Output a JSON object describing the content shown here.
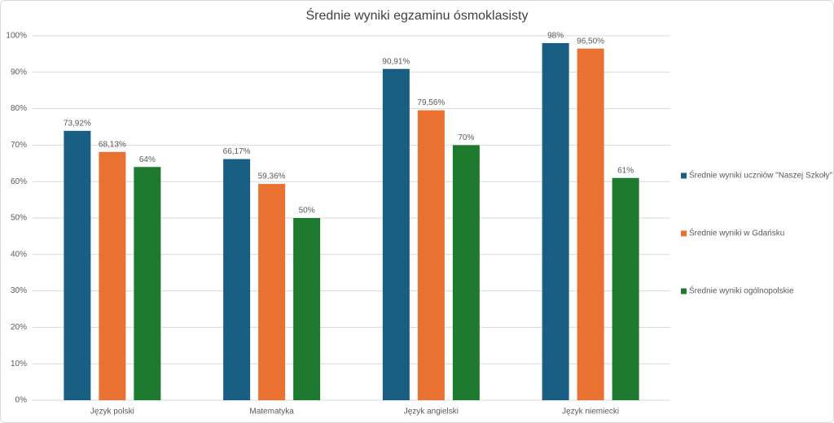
{
  "chart_data": {
    "type": "bar",
    "title": "Średnie wyniki egzaminu ósmoklasisty",
    "categories": [
      "Język polski",
      "Matematyka",
      "Język angielski",
      "Język niemiecki"
    ],
    "series": [
      {
        "name": "Średnie wyniki uczniów \"Naszej Szkoły\"",
        "color": "#195e83",
        "values": [
          73.92,
          66.17,
          90.91,
          98
        ],
        "value_labels": [
          "73,92%",
          "66,17%",
          "90,91%",
          "98%"
        ]
      },
      {
        "name": "Średnie wyniki w Gdańsku",
        "color": "#e97132",
        "values": [
          68.13,
          59.36,
          79.56,
          96.5
        ],
        "value_labels": [
          "68,13%",
          "59,36%",
          "79,56%",
          "96,50%"
        ]
      },
      {
        "name": "Średnie wyniki ogólnopolskie",
        "color": "#1e7a2e",
        "values": [
          64,
          50,
          70,
          61
        ],
        "value_labels": [
          "64%",
          "50%",
          "70%",
          "61%"
        ]
      }
    ],
    "ylim": [
      0,
      100
    ],
    "yticks": [
      {
        "value": 0,
        "label": "0%"
      },
      {
        "value": 10,
        "label": "10%"
      },
      {
        "value": 20,
        "label": "20%"
      },
      {
        "value": 30,
        "label": "30%"
      },
      {
        "value": 40,
        "label": "40%"
      },
      {
        "value": 50,
        "label": "50%"
      },
      {
        "value": 60,
        "label": "60%"
      },
      {
        "value": 70,
        "label": "70%"
      },
      {
        "value": 80,
        "label": "80%"
      },
      {
        "value": 90,
        "label": "90%"
      },
      {
        "value": 100,
        "label": "100%"
      }
    ],
    "grid": true,
    "legend": "right"
  }
}
